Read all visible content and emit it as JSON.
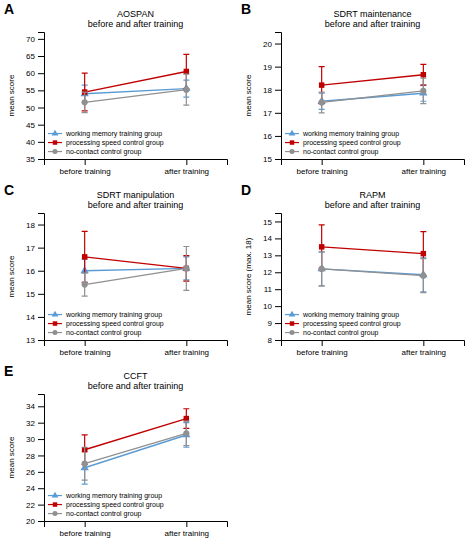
{
  "chart_data": [
    {
      "type": "line",
      "title": "AOSPAN\nbefore and after training",
      "ylabel": "mean score",
      "annotations": [
        "A"
      ],
      "categories": [
        "before training",
        "after training"
      ],
      "ylim": [
        35,
        72
      ],
      "yticks": [
        35,
        40,
        45,
        50,
        55,
        60,
        65,
        70
      ],
      "legend": "lower left",
      "series": [
        {
          "name": "working memory training group",
          "color": "#5b9bd5",
          "marker": "triangle",
          "values": [
            54.0,
            55.5
          ],
          "errors": [
            2.5,
            2.5
          ]
        },
        {
          "name": "processing speed control group",
          "color": "#c00000",
          "marker": "square",
          "values": [
            54.5,
            60.5
          ],
          "errors": [
            5.5,
            5.0
          ]
        },
        {
          "name": "no-contact control group",
          "color": "#909090",
          "marker": "circle",
          "values": [
            51.5,
            55.2
          ],
          "errors": [
            3.0,
            4.5
          ]
        }
      ]
    },
    {
      "type": "line",
      "title": "SDRT maintenance\nbefore and after training",
      "ylabel": "mean score",
      "annotations": [
        "B"
      ],
      "categories": [
        "before training",
        "after training"
      ],
      "ylim": [
        15,
        20.5
      ],
      "yticks": [
        15,
        16,
        17,
        18,
        19,
        20
      ],
      "legend": "lower left",
      "series": [
        {
          "name": "working memory training group",
          "color": "#5b9bd5",
          "marker": "triangle",
          "values": [
            17.5,
            17.85
          ],
          "errors": [
            0.35,
            0.35
          ]
        },
        {
          "name": "processing speed control group",
          "color": "#c00000",
          "marker": "square",
          "values": [
            18.2,
            18.65
          ],
          "errors": [
            0.8,
            0.45
          ]
        },
        {
          "name": "no-contact control group",
          "color": "#909090",
          "marker": "circle",
          "values": [
            17.45,
            17.95
          ],
          "errors": [
            0.45,
            0.55
          ]
        }
      ]
    },
    {
      "type": "line",
      "title": "SDRT manipulation\nbefore and after training",
      "ylabel": "mean score",
      "annotations": [
        "C"
      ],
      "categories": [
        "before training",
        "after training"
      ],
      "ylim": [
        13,
        18.5
      ],
      "yticks": [
        13,
        14,
        15,
        16,
        17,
        18
      ],
      "legend": "lower left",
      "series": [
        {
          "name": "working memory training group",
          "color": "#5b9bd5",
          "marker": "triangle",
          "values": [
            16.0,
            16.1
          ],
          "errors": [
            0.5,
            0.5
          ]
        },
        {
          "name": "processing speed control group",
          "color": "#c00000",
          "marker": "square",
          "values": [
            16.6,
            16.1
          ],
          "errors": [
            1.1,
            0.55
          ]
        },
        {
          "name": "no-contact control group",
          "color": "#909090",
          "marker": "circle",
          "values": [
            15.4,
            16.1
          ],
          "errors": [
            0.5,
            0.95
          ]
        }
      ]
    },
    {
      "type": "line",
      "title": "RAPM\nbefore and after training",
      "ylabel": "mean score (max. 18)",
      "annotations": [
        "D"
      ],
      "categories": [
        "before training",
        "after training"
      ],
      "ylim": [
        8,
        15.5
      ],
      "yticks": [
        8,
        9,
        10,
        11,
        12,
        13,
        14,
        15
      ],
      "legend": "lower left",
      "series": [
        {
          "name": "working memory training group",
          "color": "#5b9bd5",
          "marker": "triangle",
          "values": [
            12.2,
            11.85
          ],
          "errors": [
            1.0,
            1.0
          ]
        },
        {
          "name": "processing speed control group",
          "color": "#c00000",
          "marker": "square",
          "values": [
            13.5,
            13.1
          ],
          "errors": [
            1.3,
            1.3
          ]
        },
        {
          "name": "no-contact control group",
          "color": "#909090",
          "marker": "circle",
          "values": [
            12.2,
            11.8
          ],
          "errors": [
            1.0,
            1.0
          ]
        }
      ]
    },
    {
      "type": "line",
      "title": "CCFT\nbefore and after training",
      "ylabel": "mean score",
      "annotations": [
        "E"
      ],
      "categories": [
        "before training",
        "after training"
      ],
      "ylim": [
        20,
        35.5
      ],
      "yticks": [
        20,
        22,
        24,
        26,
        28,
        30,
        32,
        34
      ],
      "legend": "lower left",
      "series": [
        {
          "name": "working memory training group",
          "color": "#5b9bd5",
          "marker": "triangle",
          "values": [
            26.5,
            30.5
          ],
          "errors": [
            2.0,
            1.5
          ]
        },
        {
          "name": "processing speed control group",
          "color": "#c00000",
          "marker": "square",
          "values": [
            28.7,
            32.5
          ],
          "errors": [
            1.8,
            1.2
          ]
        },
        {
          "name": "no-contact control group",
          "color": "#909090",
          "marker": "circle",
          "values": [
            27.0,
            30.7
          ],
          "errors": [
            2.0,
            1.5
          ]
        }
      ]
    }
  ]
}
